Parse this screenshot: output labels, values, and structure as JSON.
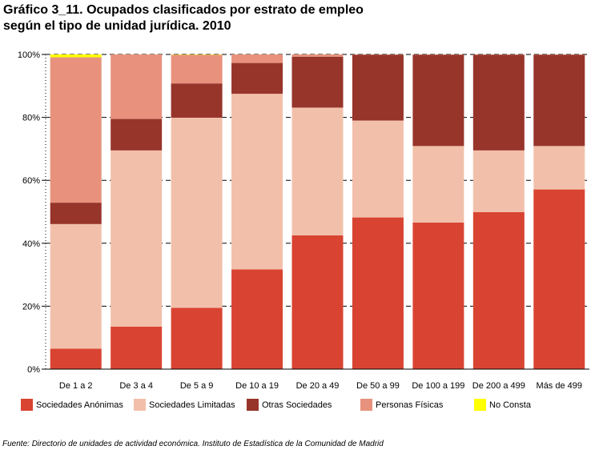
{
  "title_line1": "Gráfico 3_11. Ocupados clasificados por estrato de empleo",
  "title_line2": "según el tipo de unidad jurídica. 2010",
  "source": "Fuente: Directorio de unidades de actividad económica. Instituto de Estadística de la Comunidad de Madrid",
  "chart_data": {
    "type": "bar",
    "stacked": "percent",
    "categories": [
      "De 1 a 2",
      "De 3 a 4",
      "De 5 a 9",
      "De 10 a 19",
      "De 20 a 49",
      "De 50 a 99",
      "De 100 a 199",
      "De 200 a 499",
      "Más de 499"
    ],
    "ylim": [
      0,
      100
    ],
    "yticks": [
      "0%",
      "20%",
      "40%",
      "60%",
      "80%",
      "100%"
    ],
    "grid": true,
    "legend_position": "bottom",
    "series": [
      {
        "name": "Sociedades Anónimas",
        "color": "#D94432",
        "values": [
          6.5,
          13.5,
          19.5,
          31.7,
          42.5,
          48.2,
          46.6,
          49.9,
          57.1
        ]
      },
      {
        "name": "Sociedades Limitadas",
        "color": "#F2C0AA",
        "values": [
          39.6,
          56.0,
          60.4,
          55.8,
          40.6,
          30.8,
          24.3,
          19.6,
          13.8
        ]
      },
      {
        "name": "Otras Sociedades",
        "color": "#97352B",
        "values": [
          6.8,
          10.0,
          10.9,
          9.8,
          16.2,
          20.9,
          29.0,
          30.4,
          29.0
        ]
      },
      {
        "name": "Personas Físicas",
        "color": "#E8927D",
        "values": [
          46.2,
          20.5,
          9.1,
          2.7,
          0.7,
          0.1,
          0.1,
          0.1,
          0.1
        ]
      },
      {
        "name": "No Consta",
        "color": "#FFFF00",
        "values": [
          0.9,
          0.0,
          0.1,
          0.0,
          0.0,
          0.0,
          0.0,
          0.0,
          0.0
        ]
      }
    ]
  }
}
